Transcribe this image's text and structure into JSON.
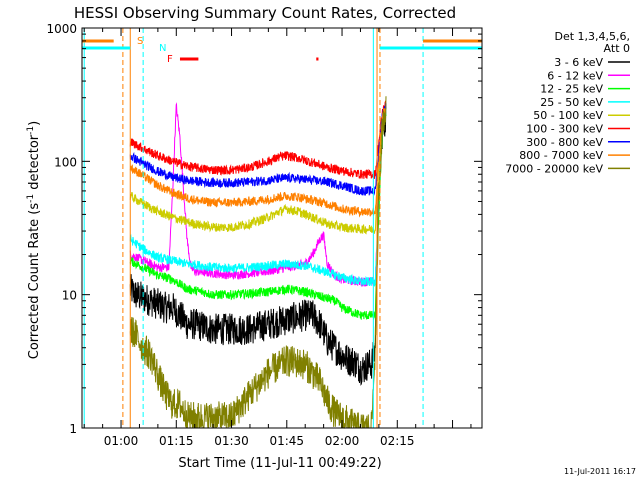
{
  "chart_data": {
    "type": "line",
    "title": "HESSI Observing Summary Count Rates, Corrected",
    "xlabel": "Start Time (11-Jul-11 00:49:22)",
    "ylabel_main": "Corrected Count Rate (s",
    "ylabel_sup1": "-1",
    "ylabel_mid": " detector",
    "ylabel_sup2": "-1",
    "ylabel_end": ")",
    "ytype": "log",
    "ylim": [
      1,
      1000
    ],
    "xlim_minutes": [
      49.4,
      158
    ],
    "xticks": [
      {
        "label": "01:00",
        "value": 60
      },
      {
        "label": "01:15",
        "value": 75
      },
      {
        "label": "01:30",
        "value": 90
      },
      {
        "label": "01:45",
        "value": 105
      },
      {
        "label": "02:00",
        "value": 120
      },
      {
        "label": "02:15",
        "value": 135
      }
    ],
    "yticks": [
      {
        "label": "1",
        "value": 1
      },
      {
        "label": "10",
        "value": 10
      },
      {
        "label": "100",
        "value": 100
      },
      {
        "label": "1000",
        "value": 1000
      }
    ],
    "legend": {
      "placement": "right",
      "header_line1": "Det 1,3,4,5,6,",
      "header_line2": "Att 0"
    },
    "series": [
      {
        "name": "3 - 6 keV",
        "color": "#000000",
        "x": [
          62.5,
          64,
          66,
          68,
          70,
          72,
          74,
          76,
          78,
          80,
          85,
          90,
          95,
          100,
          105,
          110,
          112,
          114,
          116,
          118,
          120,
          122,
          123,
          124,
          125,
          126,
          127,
          128,
          129,
          130,
          131,
          132
        ],
        "y": [
          11,
          10,
          9.5,
          9,
          8.5,
          8,
          8,
          7,
          6,
          6,
          5.5,
          5.5,
          5.5,
          6,
          6.5,
          7,
          7,
          6,
          4.5,
          4,
          3.5,
          3.2,
          3.2,
          3,
          2.8,
          2.8,
          3,
          3,
          4,
          60,
          180,
          210
        ]
      },
      {
        "name": "6 - 12 keV",
        "color": "#ff00ff",
        "x": [
          62.5,
          66,
          70,
          73,
          74,
          75,
          76,
          77,
          78,
          79,
          80,
          85,
          90,
          95,
          100,
          105,
          110,
          112,
          114,
          115,
          116,
          118,
          120,
          125,
          129,
          130,
          131,
          132
        ],
        "y": [
          20,
          18,
          16,
          16,
          60,
          260,
          150,
          60,
          25,
          16,
          15,
          14.5,
          14,
          14.5,
          15,
          16,
          17,
          20,
          26,
          28,
          17,
          14,
          13,
          12.5,
          12.5,
          50,
          200,
          230
        ]
      },
      {
        "name": "12 - 25 keV",
        "color": "#00ff00",
        "x": [
          62.5,
          66,
          70,
          74,
          78,
          82,
          85,
          90,
          95,
          100,
          105,
          110,
          115,
          118,
          120,
          125,
          129,
          130,
          131,
          132
        ],
        "y": [
          18,
          16,
          14,
          13,
          11,
          10.5,
          10,
          10,
          10.2,
          10.5,
          11,
          10.5,
          9.5,
          9,
          8,
          7,
          7,
          40,
          180,
          230
        ]
      },
      {
        "name": "25 - 50 keV",
        "color": "#00ffff",
        "x": [
          62.5,
          66,
          70,
          74,
          78,
          82,
          85,
          90,
          95,
          100,
          105,
          110,
          115,
          120,
          125,
          129,
          130,
          131,
          132
        ],
        "y": [
          26,
          22,
          19,
          18,
          17,
          16.5,
          16,
          15.8,
          16,
          16.5,
          17,
          16.5,
          15,
          13.5,
          12.5,
          12.5,
          50,
          200,
          240
        ]
      },
      {
        "name": "50 - 100 keV",
        "color": "#cccc00",
        "x": [
          62.5,
          66,
          70,
          74,
          78,
          82,
          86,
          90,
          95,
          100,
          103,
          105,
          108,
          112,
          116,
          120,
          125,
          129,
          130,
          131,
          132
        ],
        "y": [
          55,
          48,
          42,
          38,
          35,
          33,
          32,
          32,
          34,
          38,
          42,
          44,
          42,
          38,
          34,
          32,
          31,
          31,
          80,
          200,
          250
        ]
      },
      {
        "name": "100 - 300 keV",
        "color": "#ff0000",
        "x": [
          62.5,
          66,
          70,
          74,
          78,
          82,
          86,
          90,
          95,
          100,
          103,
          105,
          108,
          112,
          116,
          120,
          125,
          129,
          130,
          131,
          132
        ],
        "y": [
          140,
          125,
          110,
          100,
          92,
          88,
          86,
          86,
          90,
          100,
          108,
          110,
          106,
          98,
          90,
          85,
          80,
          80,
          140,
          240,
          270
        ]
      },
      {
        "name": "300 - 800 keV",
        "color": "#0000ff",
        "x": [
          62.5,
          66,
          70,
          74,
          78,
          82,
          86,
          90,
          95,
          100,
          103,
          105,
          108,
          112,
          116,
          120,
          125,
          129,
          130,
          131,
          132
        ],
        "y": [
          110,
          96,
          84,
          76,
          72,
          70,
          69,
          69,
          70,
          72,
          74,
          75,
          74,
          72,
          70,
          66,
          60,
          60,
          120,
          230,
          260
        ]
      },
      {
        "name": "800 - 7000 keV",
        "color": "#ff8000",
        "x": [
          62.5,
          66,
          70,
          74,
          78,
          82,
          86,
          90,
          95,
          100,
          103,
          105,
          108,
          112,
          116,
          120,
          125,
          129,
          130,
          131,
          132
        ],
        "y": [
          90,
          78,
          66,
          58,
          53,
          50,
          49,
          49,
          50,
          52,
          54,
          55,
          54,
          51,
          48,
          44,
          42,
          42,
          100,
          220,
          250
        ]
      },
      {
        "name": "7000 - 20000 keV",
        "color": "#808000",
        "x": [
          62.5,
          64,
          66,
          68,
          70,
          72,
          74,
          76,
          78,
          80,
          85,
          90,
          95,
          100,
          105,
          110,
          112,
          114,
          116,
          118,
          120,
          122,
          124,
          126,
          128,
          129,
          130,
          131,
          132
        ],
        "y": [
          5.5,
          5,
          4,
          3.5,
          2.5,
          1.8,
          1.5,
          1.5,
          1.2,
          1.2,
          1.2,
          1.2,
          1.8,
          2.6,
          3.2,
          3.0,
          2.6,
          2.2,
          1.6,
          1.3,
          1.2,
          1.1,
          1,
          1,
          1,
          4,
          60,
          200,
          240
        ]
      }
    ],
    "annotations": [
      {
        "label": "S",
        "color": "#ff8000"
      },
      {
        "label": "N",
        "color": "#00ffff"
      },
      {
        "label": "F",
        "color": "#ff0000"
      }
    ],
    "vlines_minutes": [
      {
        "value": 50,
        "color": "#00ffff",
        "style": "solid"
      },
      {
        "value": 60.5,
        "color": "#ff8000",
        "style": "dashed"
      },
      {
        "value": 62.5,
        "color": "#ff8000",
        "style": "solid"
      },
      {
        "value": 66,
        "color": "#00ffff",
        "style": "dashed"
      },
      {
        "value": 128.5,
        "color": "#00ffff",
        "style": "solid"
      },
      {
        "value": 129.5,
        "color": "#ff8000",
        "style": "solid"
      },
      {
        "value": 130.3,
        "color": "#ff8000",
        "style": "dashed"
      },
      {
        "value": 142,
        "color": "#00ffff",
        "style": "dashed"
      }
    ],
    "flag_bars": [
      {
        "label": "S",
        "color": "#ff8000",
        "segments": [
          [
            49.4,
            58
          ],
          [
            142,
            158
          ]
        ]
      },
      {
        "label": "N",
        "color": "#00ffff",
        "segments": [
          [
            49.4,
            62.5
          ],
          [
            130.3,
            158
          ]
        ]
      },
      {
        "label": "F",
        "color": "#ff0000",
        "segments": [
          [
            76,
            81
          ],
          [
            113,
            113.6
          ]
        ]
      }
    ],
    "timestamp": "11-Jul-2011 16:17"
  }
}
